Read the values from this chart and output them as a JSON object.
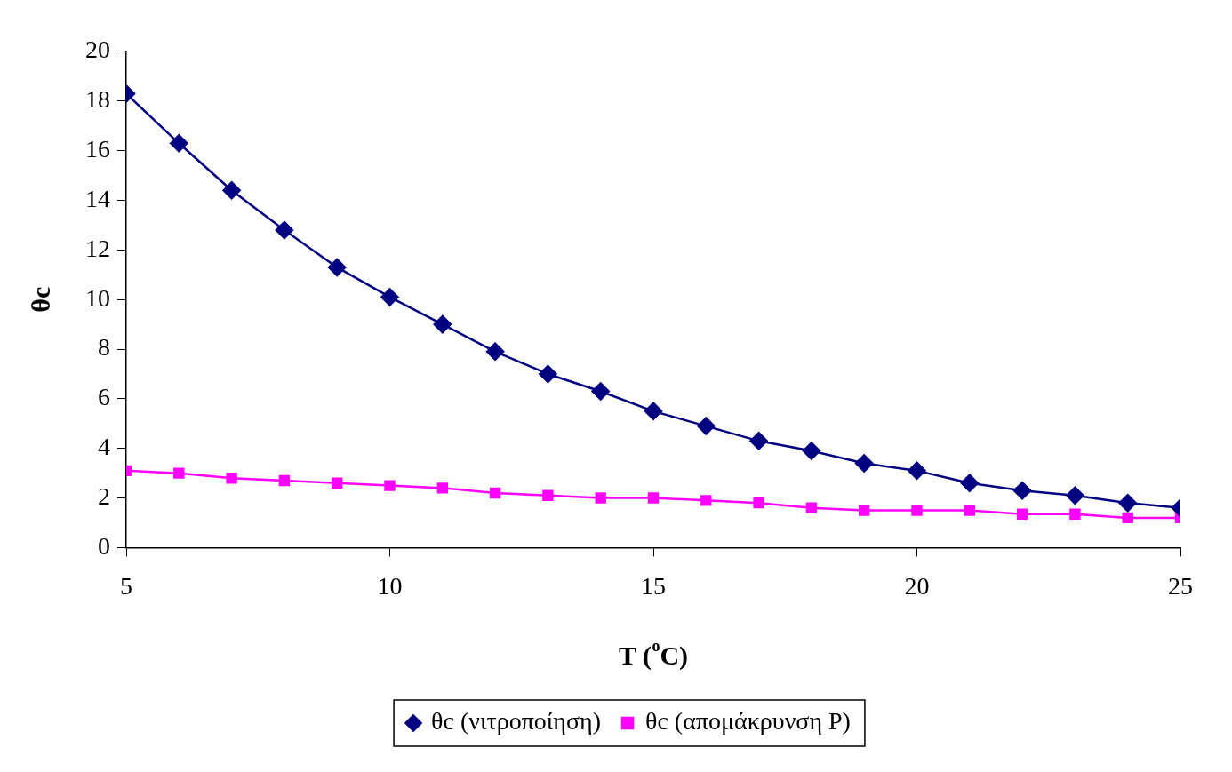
{
  "chart_data": {
    "type": "line",
    "xlabel": "T ($^{o}$C)",
    "ylabel": "θc",
    "x": [
      5,
      6,
      7,
      8,
      9,
      10,
      11,
      12,
      13,
      14,
      15,
      16,
      17,
      18,
      19,
      20,
      21,
      22,
      23,
      24,
      25
    ],
    "series": [
      {
        "name": "θc (νιτροποίηση)",
        "color": "#000080",
        "marker": "diamond",
        "values": [
          18.3,
          16.3,
          14.4,
          12.8,
          11.3,
          10.1,
          9.0,
          7.9,
          7.0,
          6.3,
          5.5,
          4.9,
          4.3,
          3.9,
          3.4,
          3.1,
          2.6,
          2.3,
          2.1,
          1.8,
          1.6
        ]
      },
      {
        "name": "θc (απομάκρυνση P)",
        "color": "#ff00ff",
        "marker": "square",
        "values": [
          3.1,
          3.0,
          2.8,
          2.7,
          2.6,
          2.5,
          2.4,
          2.2,
          2.1,
          2.0,
          2.0,
          1.9,
          1.8,
          1.6,
          1.5,
          1.5,
          1.5,
          1.35,
          1.35,
          1.2,
          1.2
        ]
      }
    ],
    "xlim": [
      5,
      25
    ],
    "xticks": [
      5,
      10,
      15,
      20,
      25
    ],
    "ylim": [
      0,
      20
    ],
    "yticks": [
      0,
      2,
      4,
      6,
      8,
      10,
      12,
      14,
      16,
      18,
      20
    ],
    "grid": false,
    "legend": "bottom",
    "line_style": "solid"
  }
}
